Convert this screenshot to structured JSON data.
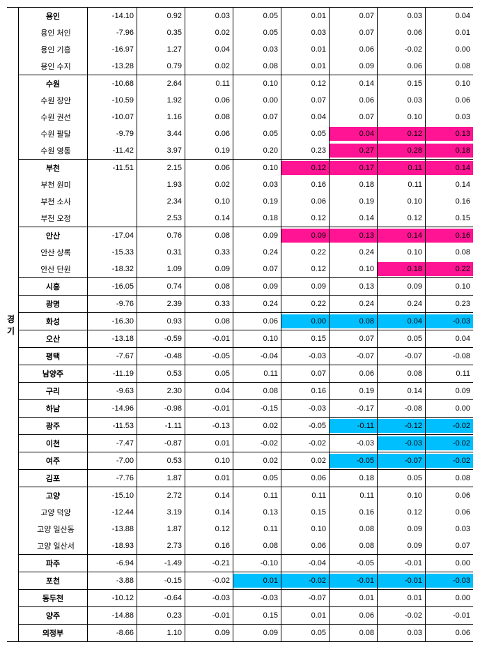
{
  "region_label": "경기",
  "highlight_colors": {
    "pink": "#ff1493",
    "blue": "#00bfff"
  },
  "rows": [
    {
      "name": "용인",
      "group": true,
      "vals": [
        "-14.10",
        "0.92",
        "0.03",
        "0.05",
        "0.01",
        "0.07",
        "0.03",
        "0.04"
      ],
      "hl": [
        null,
        null,
        null,
        null,
        null,
        null,
        null,
        null
      ]
    },
    {
      "name": "용인 처인",
      "indent": true,
      "vals": [
        "-7.96",
        "0.35",
        "0.02",
        "0.05",
        "0.03",
        "0.07",
        "0.06",
        "0.01"
      ],
      "hl": [
        null,
        null,
        null,
        null,
        null,
        null,
        null,
        null
      ]
    },
    {
      "name": "용인 기흥",
      "indent": true,
      "vals": [
        "-16.97",
        "1.27",
        "0.04",
        "0.03",
        "0.01",
        "0.06",
        "-0.02",
        "0.00"
      ],
      "hl": [
        null,
        null,
        null,
        null,
        null,
        null,
        null,
        null
      ]
    },
    {
      "name": "용인 수지",
      "indent": true,
      "vals": [
        "-13.28",
        "0.79",
        "0.02",
        "0.08",
        "0.01",
        "0.09",
        "0.06",
        "0.08"
      ],
      "hl": [
        null,
        null,
        null,
        null,
        null,
        null,
        null,
        null
      ]
    },
    {
      "name": "수원",
      "group": true,
      "vals": [
        "-10.68",
        "2.64",
        "0.11",
        "0.10",
        "0.12",
        "0.14",
        "0.15",
        "0.10"
      ],
      "hl": [
        null,
        null,
        null,
        null,
        null,
        null,
        null,
        null
      ]
    },
    {
      "name": "수원 장안",
      "indent": true,
      "vals": [
        "-10.59",
        "1.92",
        "0.06",
        "0.00",
        "0.07",
        "0.06",
        "0.03",
        "0.06"
      ],
      "hl": [
        null,
        null,
        null,
        null,
        null,
        null,
        null,
        null
      ]
    },
    {
      "name": "수원 권선",
      "indent": true,
      "vals": [
        "-10.07",
        "1.16",
        "0.08",
        "0.07",
        "0.04",
        "0.07",
        "0.10",
        "0.03"
      ],
      "hl": [
        null,
        null,
        null,
        null,
        null,
        null,
        null,
        null
      ]
    },
    {
      "name": "수원 팔달",
      "indent": true,
      "vals": [
        "-9.79",
        "3.44",
        "0.06",
        "0.05",
        "0.05",
        "0.04",
        "0.12",
        "0.13"
      ],
      "hl": [
        null,
        null,
        null,
        null,
        null,
        "pink",
        "pink",
        "pink"
      ]
    },
    {
      "name": "수원 영통",
      "indent": true,
      "vals": [
        "-11.42",
        "3.97",
        "0.19",
        "0.20",
        "0.23",
        "0.27",
        "0.28",
        "0.18"
      ],
      "hl": [
        null,
        null,
        null,
        null,
        null,
        "pink",
        "pink",
        "pink"
      ]
    },
    {
      "name": "부천",
      "group": true,
      "vals": [
        "-11.51",
        "2.15",
        "0.06",
        "0.10",
        "0.12",
        "0.17",
        "0.11",
        "0.14"
      ],
      "hl": [
        null,
        null,
        null,
        null,
        "pink",
        "pink",
        "pink",
        "pink"
      ]
    },
    {
      "name": "부천 원미",
      "indent": true,
      "vals": [
        "",
        "1.93",
        "0.02",
        "0.03",
        "0.16",
        "0.18",
        "0.11",
        "0.14"
      ],
      "hl": [
        null,
        null,
        null,
        null,
        null,
        null,
        null,
        null
      ]
    },
    {
      "name": "부천 소사",
      "indent": true,
      "vals": [
        "",
        "2.34",
        "0.10",
        "0.19",
        "0.06",
        "0.19",
        "0.10",
        "0.16"
      ],
      "hl": [
        null,
        null,
        null,
        null,
        null,
        null,
        null,
        null
      ]
    },
    {
      "name": "부천 오정",
      "indent": true,
      "vals": [
        "",
        "2.53",
        "0.14",
        "0.18",
        "0.12",
        "0.14",
        "0.12",
        "0.15"
      ],
      "hl": [
        null,
        null,
        null,
        null,
        null,
        null,
        null,
        null
      ]
    },
    {
      "name": "안산",
      "group": true,
      "vals": [
        "-17.04",
        "0.76",
        "0.08",
        "0.09",
        "0.09",
        "0.13",
        "0.14",
        "0.16"
      ],
      "hl": [
        null,
        null,
        null,
        null,
        "pink",
        "pink",
        "pink",
        "pink"
      ]
    },
    {
      "name": "안산 상록",
      "indent": true,
      "vals": [
        "-15.33",
        "0.31",
        "0.33",
        "0.24",
        "0.22",
        "0.24",
        "0.10",
        "0.08"
      ],
      "hl": [
        null,
        null,
        null,
        null,
        null,
        null,
        null,
        null
      ]
    },
    {
      "name": "안산 단원",
      "indent": true,
      "vals": [
        "-18.32",
        "1.09",
        "0.09",
        "0.07",
        "0.12",
        "0.10",
        "0.18",
        "0.22"
      ],
      "hl": [
        null,
        null,
        null,
        null,
        null,
        null,
        "pink",
        "pink"
      ]
    },
    {
      "name": "시흥",
      "group": true,
      "vals": [
        "-16.05",
        "0.74",
        "0.08",
        "0.09",
        "0.09",
        "0.13",
        "0.09",
        "0.10"
      ],
      "hl": [
        null,
        null,
        null,
        null,
        null,
        null,
        null,
        null
      ]
    },
    {
      "name": "광명",
      "group": true,
      "vals": [
        "-9.76",
        "2.39",
        "0.33",
        "0.24",
        "0.22",
        "0.24",
        "0.24",
        "0.23"
      ],
      "hl": [
        null,
        null,
        null,
        null,
        null,
        null,
        null,
        null
      ]
    },
    {
      "name": "화성",
      "group": true,
      "vals": [
        "-16.30",
        "0.93",
        "0.08",
        "0.06",
        "0.00",
        "0.08",
        "0.04",
        "-0.03"
      ],
      "hl": [
        null,
        null,
        null,
        null,
        "blue",
        "blue",
        "blue",
        "blue"
      ]
    },
    {
      "name": "오산",
      "group": true,
      "vals": [
        "-13.18",
        "-0.59",
        "-0.01",
        "0.10",
        "0.15",
        "0.07",
        "0.05",
        "0.04"
      ],
      "hl": [
        null,
        null,
        null,
        null,
        null,
        null,
        null,
        null
      ]
    },
    {
      "name": "평택",
      "group": true,
      "vals": [
        "-7.67",
        "-0.48",
        "-0.05",
        "-0.04",
        "-0.03",
        "-0.07",
        "-0.07",
        "-0.08"
      ],
      "hl": [
        null,
        null,
        null,
        null,
        null,
        null,
        null,
        null
      ]
    },
    {
      "name": "남양주",
      "group": true,
      "vals": [
        "-11.19",
        "0.53",
        "0.05",
        "0.11",
        "0.07",
        "0.06",
        "0.08",
        "0.11"
      ],
      "hl": [
        null,
        null,
        null,
        null,
        null,
        null,
        null,
        null
      ]
    },
    {
      "name": "구리",
      "group": true,
      "vals": [
        "-9.63",
        "2.30",
        "0.04",
        "0.08",
        "0.16",
        "0.19",
        "0.14",
        "0.09"
      ],
      "hl": [
        null,
        null,
        null,
        null,
        null,
        null,
        null,
        null
      ]
    },
    {
      "name": "하남",
      "group": true,
      "vals": [
        "-14.96",
        "-0.98",
        "-0.01",
        "-0.15",
        "-0.03",
        "-0.17",
        "-0.08",
        "0.00"
      ],
      "hl": [
        null,
        null,
        null,
        null,
        null,
        null,
        null,
        null
      ]
    },
    {
      "name": "광주",
      "group": true,
      "vals": [
        "-11.53",
        "-1.11",
        "-0.13",
        "0.02",
        "-0.05",
        "-0.11",
        "-0.12",
        "-0.02"
      ],
      "hl": [
        null,
        null,
        null,
        null,
        null,
        "blue",
        "blue",
        "blue"
      ]
    },
    {
      "name": "이천",
      "group": true,
      "vals": [
        "-7.47",
        "-0.87",
        "0.01",
        "-0.02",
        "-0.02",
        "-0.03",
        "-0.03",
        "-0.02"
      ],
      "hl": [
        null,
        null,
        null,
        null,
        null,
        null,
        "blue",
        "blue"
      ]
    },
    {
      "name": "여주",
      "group": true,
      "vals": [
        "-7.00",
        "0.53",
        "0.10",
        "0.02",
        "0.02",
        "-0.05",
        "-0.07",
        "-0.02"
      ],
      "hl": [
        null,
        null,
        null,
        null,
        null,
        "blue",
        "blue",
        "blue"
      ]
    },
    {
      "name": "김포",
      "group": true,
      "vals": [
        "-7.76",
        "1.87",
        "0.01",
        "0.05",
        "0.06",
        "0.18",
        "0.05",
        "0.08"
      ],
      "hl": [
        null,
        null,
        null,
        null,
        null,
        null,
        null,
        null
      ]
    },
    {
      "name": "고양",
      "group": true,
      "vals": [
        "-15.10",
        "2.72",
        "0.14",
        "0.11",
        "0.11",
        "0.11",
        "0.10",
        "0.06"
      ],
      "hl": [
        null,
        null,
        null,
        null,
        null,
        null,
        null,
        null
      ]
    },
    {
      "name": "고양 덕양",
      "indent": true,
      "vals": [
        "-12.44",
        "3.19",
        "0.14",
        "0.13",
        "0.15",
        "0.16",
        "0.12",
        "0.06"
      ],
      "hl": [
        null,
        null,
        null,
        null,
        null,
        null,
        null,
        null
      ]
    },
    {
      "name": "고양 일산동",
      "indent": true,
      "vals": [
        "-13.88",
        "1.87",
        "0.12",
        "0.11",
        "0.10",
        "0.08",
        "0.09",
        "0.03"
      ],
      "hl": [
        null,
        null,
        null,
        null,
        null,
        null,
        null,
        null
      ]
    },
    {
      "name": "고양 일산서",
      "indent": true,
      "vals": [
        "-18.93",
        "2.73",
        "0.16",
        "0.08",
        "0.06",
        "0.08",
        "0.09",
        "0.07"
      ],
      "hl": [
        null,
        null,
        null,
        null,
        null,
        null,
        null,
        null
      ]
    },
    {
      "name": "파주",
      "group": true,
      "vals": [
        "-6.94",
        "-1.49",
        "-0.21",
        "-0.10",
        "-0.04",
        "-0.05",
        "-0.01",
        "0.00"
      ],
      "hl": [
        null,
        null,
        null,
        null,
        null,
        null,
        null,
        null
      ]
    },
    {
      "name": "포천",
      "group": true,
      "vals": [
        "-3.88",
        "-0.15",
        "-0.02",
        "0.01",
        "-0.02",
        "-0.01",
        "-0.01",
        "-0.03"
      ],
      "hl": [
        null,
        null,
        null,
        "blue",
        "blue",
        "blue",
        "blue",
        "blue"
      ]
    },
    {
      "name": "동두천",
      "group": true,
      "vals": [
        "-10.12",
        "-0.64",
        "-0.03",
        "-0.03",
        "-0.07",
        "0.01",
        "0.01",
        "0.00"
      ],
      "hl": [
        null,
        null,
        null,
        null,
        null,
        null,
        null,
        null
      ]
    },
    {
      "name": "양주",
      "group": true,
      "vals": [
        "-14.88",
        "0.23",
        "-0.01",
        "0.15",
        "0.01",
        "0.06",
        "-0.02",
        "-0.01"
      ],
      "hl": [
        null,
        null,
        null,
        null,
        null,
        null,
        null,
        null
      ]
    },
    {
      "name": "의정부",
      "group": true,
      "vals": [
        "-8.66",
        "1.10",
        "0.09",
        "0.09",
        "0.05",
        "0.08",
        "0.03",
        "0.06"
      ],
      "hl": [
        null,
        null,
        null,
        null,
        null,
        null,
        null,
        null
      ]
    }
  ]
}
